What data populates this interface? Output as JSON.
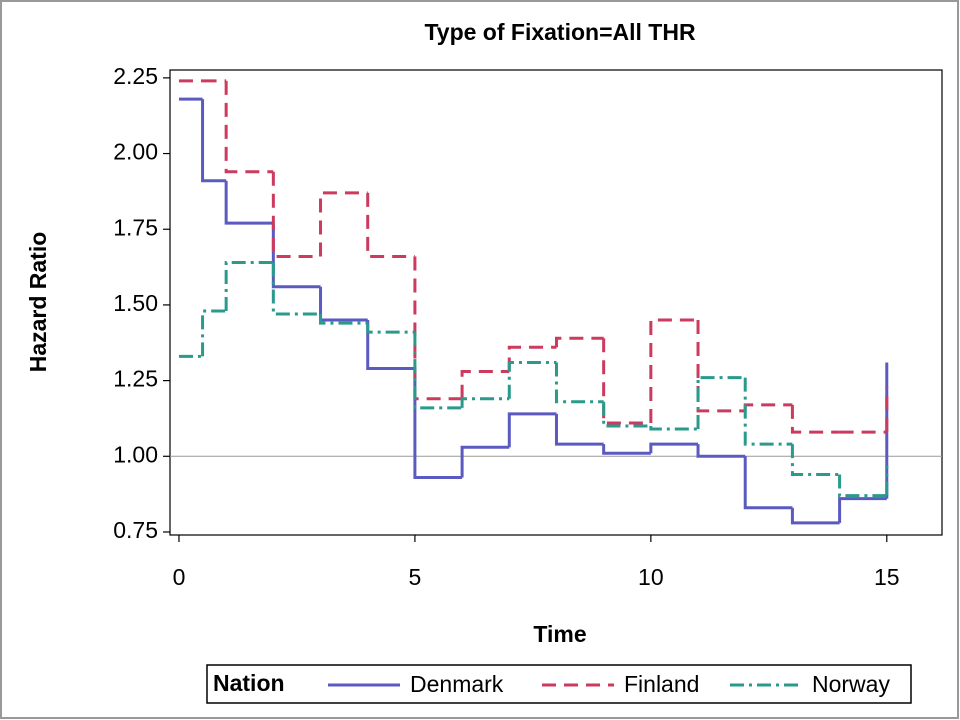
{
  "chart_data": {
    "type": "step",
    "title": "Type of Fixation=All THR",
    "x_label": "Time",
    "y_label": "Hazard Ratio",
    "x": [
      0,
      0.5,
      1,
      2,
      3,
      4,
      5,
      6,
      7,
      8,
      9,
      10,
      11,
      12,
      13,
      14,
      15
    ],
    "series": [
      {
        "name": "Denmark",
        "color": "#5a5ac0",
        "dash": "none",
        "values": [
          2.18,
          1.91,
          1.77,
          1.56,
          1.45,
          1.29,
          0.93,
          1.03,
          1.14,
          1.04,
          1.01,
          1.04,
          1.0,
          0.83,
          0.78,
          0.86,
          1.31
        ]
      },
      {
        "name": "Finland",
        "color": "#cc3a5e",
        "dash": "14 8",
        "values": [
          2.24,
          2.24,
          1.94,
          1.66,
          1.87,
          1.66,
          1.19,
          1.28,
          1.36,
          1.39,
          1.11,
          1.45,
          1.15,
          1.17,
          1.08,
          1.08,
          1.23
        ]
      },
      {
        "name": "Norway",
        "color": "#2a9a8c",
        "dash": "14 5 3 5",
        "values": [
          1.33,
          1.48,
          1.64,
          1.47,
          1.44,
          1.41,
          1.16,
          1.19,
          1.31,
          1.18,
          1.1,
          1.09,
          1.26,
          1.04,
          0.94,
          0.87,
          0.97
        ]
      }
    ],
    "legend_title": "Nation",
    "xlim": [
      -0.19,
      16.17
    ],
    "xticks": [
      0,
      5,
      10,
      15
    ],
    "ylim": [
      0.74,
      2.276
    ],
    "yticks": [
      {
        "value": 0.75,
        "label": "0.75"
      },
      {
        "value": 1,
        "label": "1.00"
      },
      {
        "value": 1.25,
        "label": "1.25"
      },
      {
        "value": 1.5,
        "label": "1.50"
      },
      {
        "value": 1.75,
        "label": "1.75"
      },
      {
        "value": 2,
        "label": "2.00"
      },
      {
        "value": 2.25,
        "label": "2.25"
      }
    ],
    "refline": 1
  }
}
